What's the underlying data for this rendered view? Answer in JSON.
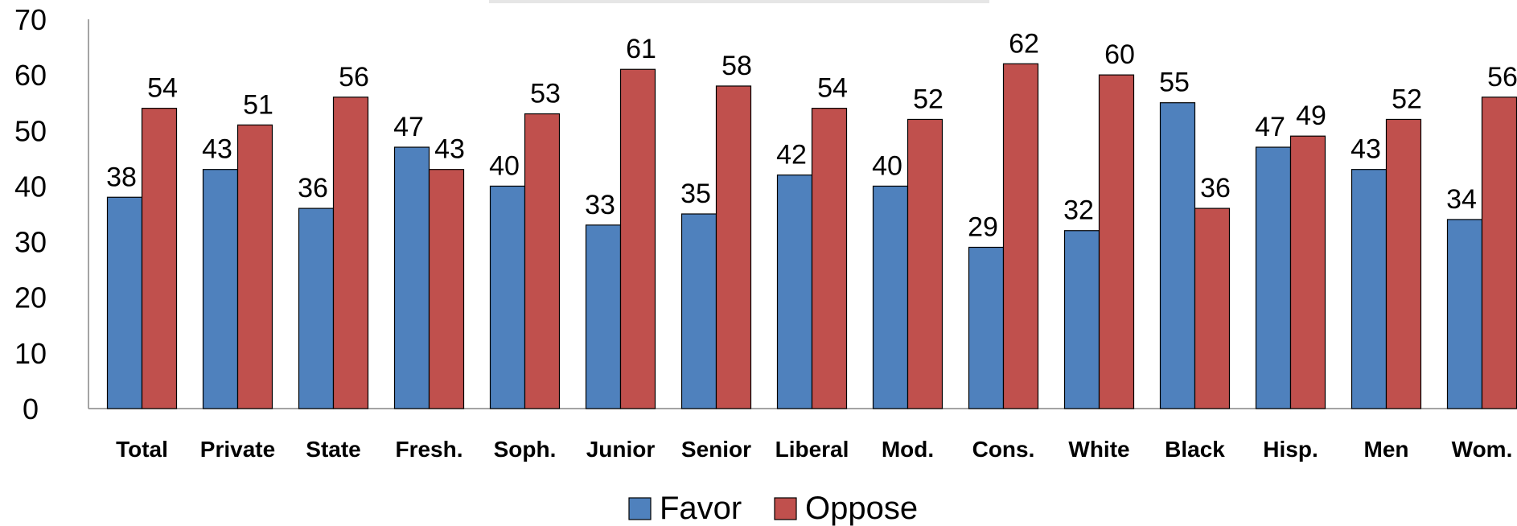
{
  "chart_data": {
    "type": "bar",
    "title": "",
    "xlabel": "",
    "ylabel": "",
    "ylim": [
      0,
      70
    ],
    "yticks": [
      0,
      10,
      20,
      30,
      40,
      50,
      60,
      70
    ],
    "grid": false,
    "legend_position": "bottom",
    "categories": [
      "Total",
      "Private",
      "State",
      "Fresh.",
      "Soph.",
      "Junior",
      "Senior",
      "Liberal",
      "Mod.",
      "Cons.",
      "White",
      "Black",
      "Hisp.",
      "Men",
      "Wom."
    ],
    "series": [
      {
        "name": "Favor",
        "color": "#4f81bd",
        "values": [
          38,
          43,
          36,
          47,
          40,
          33,
          35,
          42,
          40,
          29,
          32,
          55,
          47,
          43,
          34
        ]
      },
      {
        "name": "Oppose",
        "color": "#c0504d",
        "values": [
          54,
          51,
          56,
          43,
          53,
          61,
          58,
          54,
          52,
          62,
          60,
          36,
          49,
          52,
          56
        ]
      }
    ]
  }
}
